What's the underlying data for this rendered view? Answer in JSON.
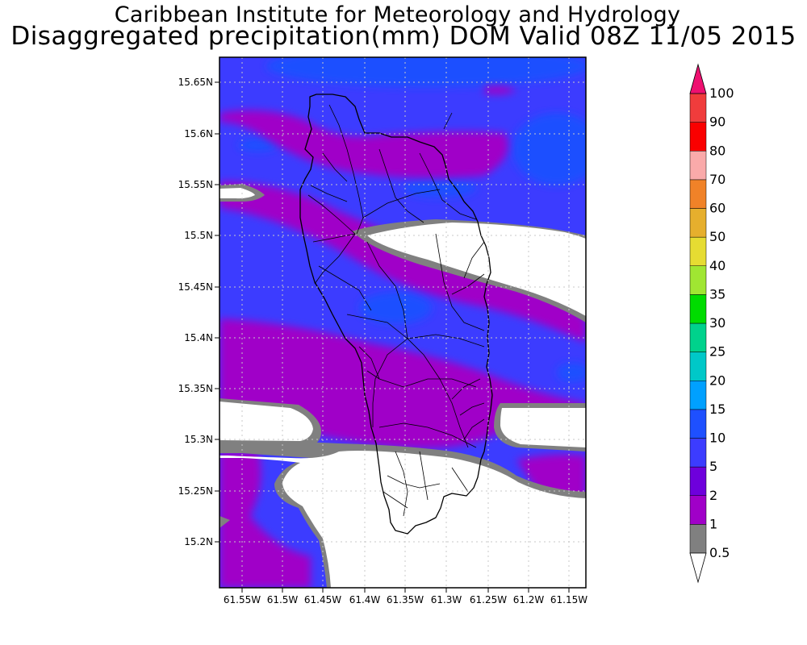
{
  "title": "Caribbean Institute for Meteorology and Hydrology",
  "subtitle": "Disaggregated precipitation(mm) DOM Valid 08Z 11/05 2015",
  "map": {
    "lat_labels": [
      "15.65N",
      "15.6N",
      "15.55N",
      "15.5N",
      "15.45N",
      "15.4N",
      "15.35N",
      "15.3N",
      "15.25N",
      "15.2N"
    ],
    "lon_labels": [
      "61.55W",
      "61.5W",
      "61.45W",
      "61.4W",
      "61.35W",
      "61.3W",
      "61.25W",
      "61.2W",
      "61.15W"
    ]
  },
  "legend": {
    "bins": [
      {
        "label": "0.5",
        "color": "#808080"
      },
      {
        "label": "1",
        "color": "#a000c8"
      },
      {
        "label": "2",
        "color": "#6e00dc"
      },
      {
        "label": "5",
        "color": "#3c3cff"
      },
      {
        "label": "10",
        "color": "#1e50ff"
      },
      {
        "label": "15",
        "color": "#00a0ff"
      },
      {
        "label": "20",
        "color": "#00c8c8"
      },
      {
        "label": "25",
        "color": "#00d28c"
      },
      {
        "label": "30",
        "color": "#00dc00"
      },
      {
        "label": "35",
        "color": "#a0e632"
      },
      {
        "label": "40",
        "color": "#e6dc32"
      },
      {
        "label": "50",
        "color": "#e6af2d"
      },
      {
        "label": "60",
        "color": "#f08228"
      },
      {
        "label": "70",
        "color": "#faaaaa"
      },
      {
        "label": "80",
        "color": "#fa0000"
      },
      {
        "label": "90",
        "color": "#f03c3c"
      },
      {
        "label": "100",
        "color": "#ee1070"
      }
    ],
    "under_color": "#ffffff"
  }
}
